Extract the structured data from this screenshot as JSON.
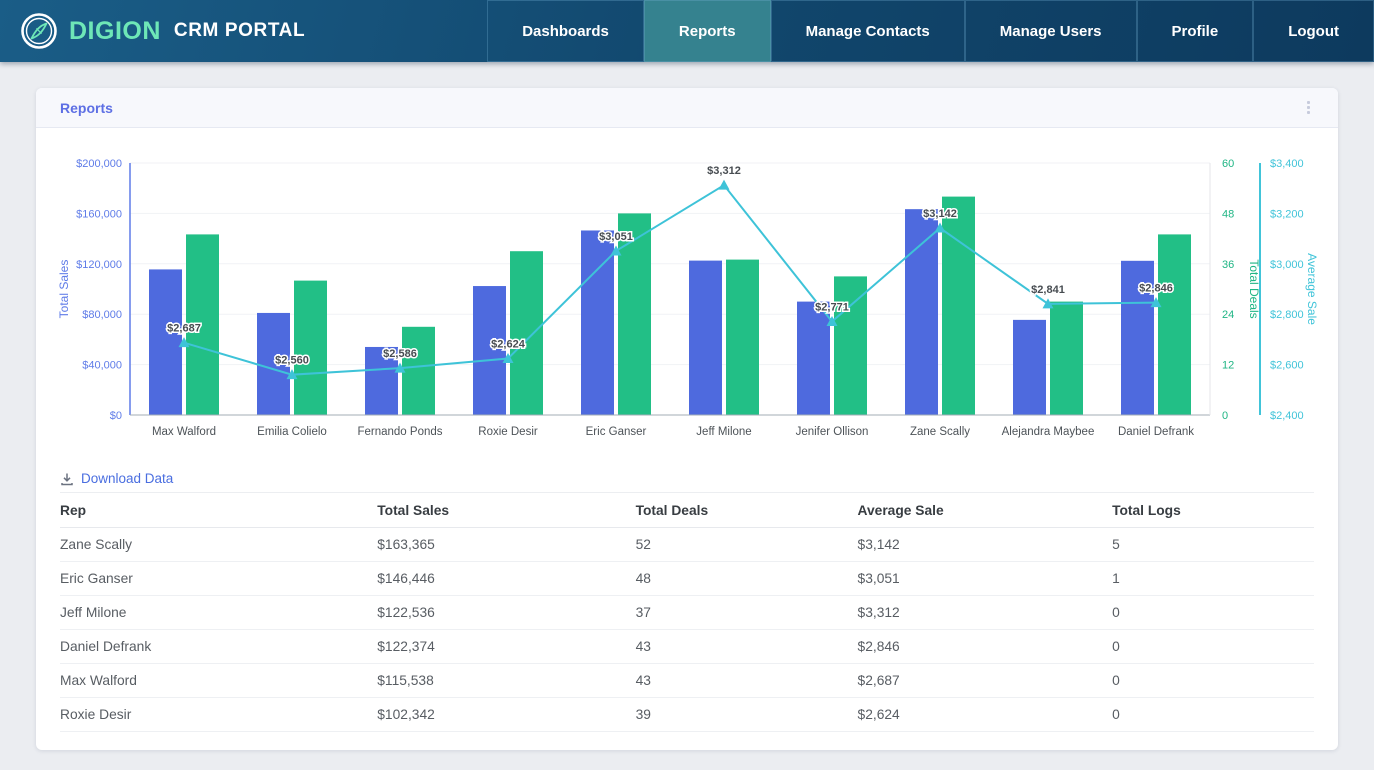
{
  "header": {
    "brand": "DIGION",
    "app_title": "CRM PORTAL",
    "nav": [
      {
        "label": "Dashboards",
        "active": false
      },
      {
        "label": "Reports",
        "active": true
      },
      {
        "label": "Manage Contacts",
        "active": false
      },
      {
        "label": "Manage Users",
        "active": false
      },
      {
        "label": "Profile",
        "active": false
      },
      {
        "label": "Logout",
        "active": false
      }
    ]
  },
  "panel": {
    "title": "Reports"
  },
  "chart_data": {
    "type": "combo bar+line",
    "categories": [
      "Max Walford",
      "Emilia Colielo",
      "Fernando Ponds",
      "Roxie Desir",
      "Eric Ganser",
      "Jeff Milone",
      "Jenifer Ollison",
      "Zane Scally",
      "Alejandra Maybee",
      "Daniel Defrank"
    ],
    "series": [
      {
        "name": "Total Sales",
        "type": "bar",
        "axis": "left",
        "color": "#4e6ade",
        "values": [
          115538,
          81000,
          54000,
          102342,
          146446,
          122536,
          90000,
          163365,
          75500,
          122374
        ]
      },
      {
        "name": "Total Deals",
        "type": "bar",
        "axis": "deals",
        "color": "#22bf86",
        "values": [
          43,
          32,
          21,
          39,
          48,
          37,
          33,
          52,
          27,
          43
        ]
      },
      {
        "name": "Average Sale",
        "type": "line",
        "axis": "avg",
        "color": "#3ec3d8",
        "values": [
          2687,
          2560,
          2586,
          2624,
          3051,
          3312,
          2771,
          3142,
          2841,
          2846
        ],
        "point_labels": [
          "$2,687",
          "$2,560",
          "$2,586",
          "$2,624",
          "$3,051",
          "$3,312",
          "$2,771",
          "$3,142",
          "$2,841",
          "$2,846"
        ]
      }
    ],
    "axes": {
      "left": {
        "title": "Total Sales",
        "min": 0,
        "max": 200000,
        "step": 40000,
        "color": "#5f7ce8",
        "ticks": [
          "$0",
          "$40,000",
          "$80,000",
          "$120,000",
          "$160,000",
          "$200,000"
        ]
      },
      "deals": {
        "title": "Total Deals",
        "min": 0,
        "max": 60,
        "step": 12,
        "color": "#1fb584",
        "ticks": [
          "0",
          "12",
          "24",
          "36",
          "48",
          "60"
        ]
      },
      "avg": {
        "title": "Average Sale",
        "min": 2400,
        "max": 3400,
        "step": 200,
        "color": "#41c4d9",
        "ticks": [
          "$2,400",
          "$2,600",
          "$2,800",
          "$3,000",
          "$3,200",
          "$3,400"
        ]
      }
    },
    "grid": true,
    "legend": "none"
  },
  "download": {
    "label": "Download Data"
  },
  "table": {
    "columns": [
      "Rep",
      "Total Sales",
      "Total Deals",
      "Average Sale",
      "Total Logs"
    ],
    "rows": [
      [
        "Zane Scally",
        "$163,365",
        "52",
        "$3,142",
        "5"
      ],
      [
        "Eric Ganser",
        "$146,446",
        "48",
        "$3,051",
        "1"
      ],
      [
        "Jeff Milone",
        "$122,536",
        "37",
        "$3,312",
        "0"
      ],
      [
        "Daniel Defrank",
        "$122,374",
        "43",
        "$2,846",
        "0"
      ],
      [
        "Max Walford",
        "$115,538",
        "43",
        "$2,687",
        "0"
      ],
      [
        "Roxie Desir",
        "$102,342",
        "39",
        "$2,624",
        "0"
      ]
    ]
  }
}
